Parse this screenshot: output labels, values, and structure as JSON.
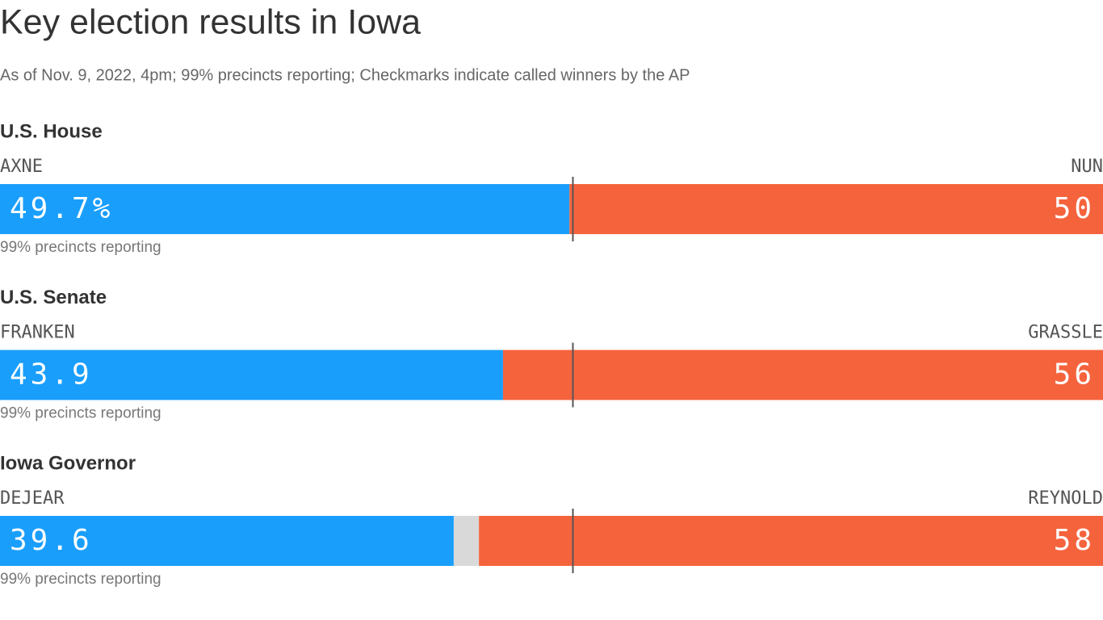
{
  "chart_data": {
    "type": "diverging-bar",
    "title": "Key election results in Iowa",
    "subtitle": "As of Nov. 9, 2022, 4pm; 99% precincts reporting; Checkmarks indicate called winners by the AP",
    "xlim": [
      0,
      100
    ],
    "reference_line": 50,
    "races": [
      {
        "title": "U.S. House",
        "note": "99% precincts reporting",
        "segments": [
          {
            "name": "AXNE",
            "color": "#1a9efc",
            "value": 49.7,
            "value_label": "49.7%"
          },
          {
            "name": "NUN",
            "color": "#f5633d",
            "value": 50.3,
            "value_label": "50"
          }
        ]
      },
      {
        "title": "U.S. Senate",
        "note": "99% precincts reporting",
        "segments": [
          {
            "name": "FRANKEN",
            "color": "#1a9efc",
            "value": 43.9,
            "value_label": "43.9"
          },
          {
            "name": "GRASSLE",
            "color": "#f5633d",
            "value": 56.1,
            "value_label": "56"
          }
        ]
      },
      {
        "title": "Iowa Governor",
        "note": "99% precincts reporting",
        "segments": [
          {
            "name": "DEJEAR",
            "color": "#1a9efc",
            "value": 39.6,
            "value_label": "39.6"
          },
          {
            "color": "#d9d9d9",
            "value": 2.2
          },
          {
            "name": "REYNOLD",
            "color": "#f5633d",
            "value": 58.2,
            "value_label": "58"
          }
        ]
      }
    ]
  }
}
